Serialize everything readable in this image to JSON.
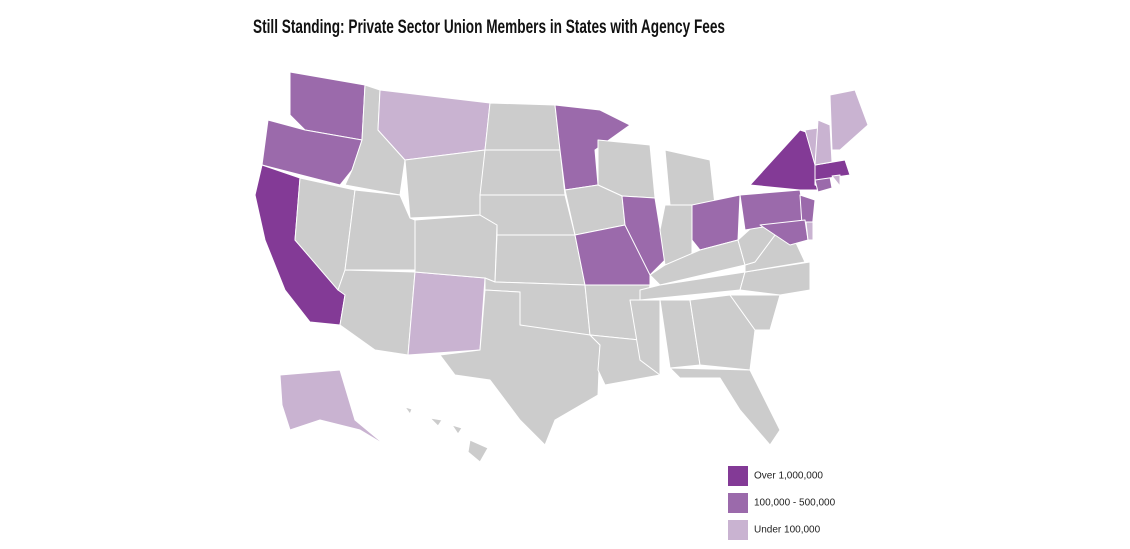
{
  "title": "Still Standing: Private Sector Union Members in States with Agency Fees",
  "land_color": "#cccccc",
  "legend": [
    {
      "label": "Over 1,000,000",
      "color": "#833a96"
    },
    {
      "label": "100,000 - 500,000",
      "color": "#9b6aab"
    },
    {
      "label": "Under 100,000",
      "color": "#c9b3d1"
    }
  ]
}
